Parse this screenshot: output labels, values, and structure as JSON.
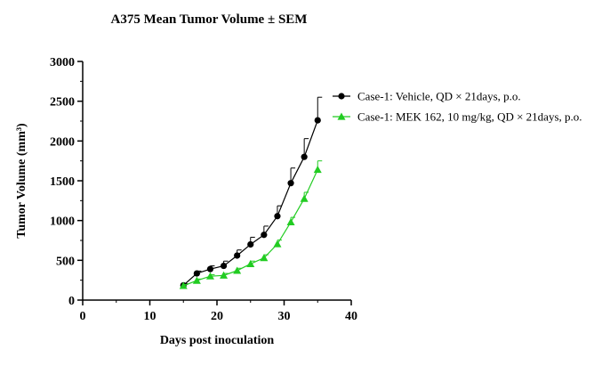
{
  "chart_data": {
    "type": "line",
    "title": "A375 Mean Tumor Volume ± SEM",
    "xlabel": "Days post inoculation",
    "ylabel": "Tumor Volume (mm³)",
    "xlim": [
      0,
      40
    ],
    "ylim": [
      0,
      3000
    ],
    "xticks": [
      0,
      10,
      20,
      30,
      40
    ],
    "yticks": [
      0,
      500,
      1000,
      1500,
      2000,
      2500,
      3000
    ],
    "grid": false,
    "legend_position": "top-right",
    "series": [
      {
        "name": "Case-1: Vehicle, QD × 21days, p.o.",
        "color": "#000000",
        "marker": "circle",
        "points": [
          {
            "x": 15,
            "y": 185,
            "err": 20
          },
          {
            "x": 17,
            "y": 335,
            "err": 30
          },
          {
            "x": 19,
            "y": 390,
            "err": 40
          },
          {
            "x": 21,
            "y": 430,
            "err": 60
          },
          {
            "x": 23,
            "y": 560,
            "err": 70
          },
          {
            "x": 25,
            "y": 700,
            "err": 90
          },
          {
            "x": 27,
            "y": 820,
            "err": 110
          },
          {
            "x": 29,
            "y": 1055,
            "err": 130
          },
          {
            "x": 31,
            "y": 1470,
            "err": 190
          },
          {
            "x": 33,
            "y": 1800,
            "err": 230
          },
          {
            "x": 35,
            "y": 2260,
            "err": 290
          }
        ]
      },
      {
        "name": "Case-1: MEK 162, 10 mg/kg, QD × 21days, p.o.",
        "color": "#22cc22",
        "marker": "triangle",
        "points": [
          {
            "x": 15,
            "y": 180,
            "err": 15
          },
          {
            "x": 17,
            "y": 245,
            "err": 20
          },
          {
            "x": 19,
            "y": 300,
            "err": 20
          },
          {
            "x": 21,
            "y": 310,
            "err": 25
          },
          {
            "x": 23,
            "y": 370,
            "err": 30
          },
          {
            "x": 25,
            "y": 455,
            "err": 35
          },
          {
            "x": 27,
            "y": 530,
            "err": 40
          },
          {
            "x": 29,
            "y": 705,
            "err": 50
          },
          {
            "x": 31,
            "y": 980,
            "err": 60
          },
          {
            "x": 33,
            "y": 1275,
            "err": 80
          },
          {
            "x": 35,
            "y": 1640,
            "err": 110
          }
        ]
      }
    ]
  }
}
